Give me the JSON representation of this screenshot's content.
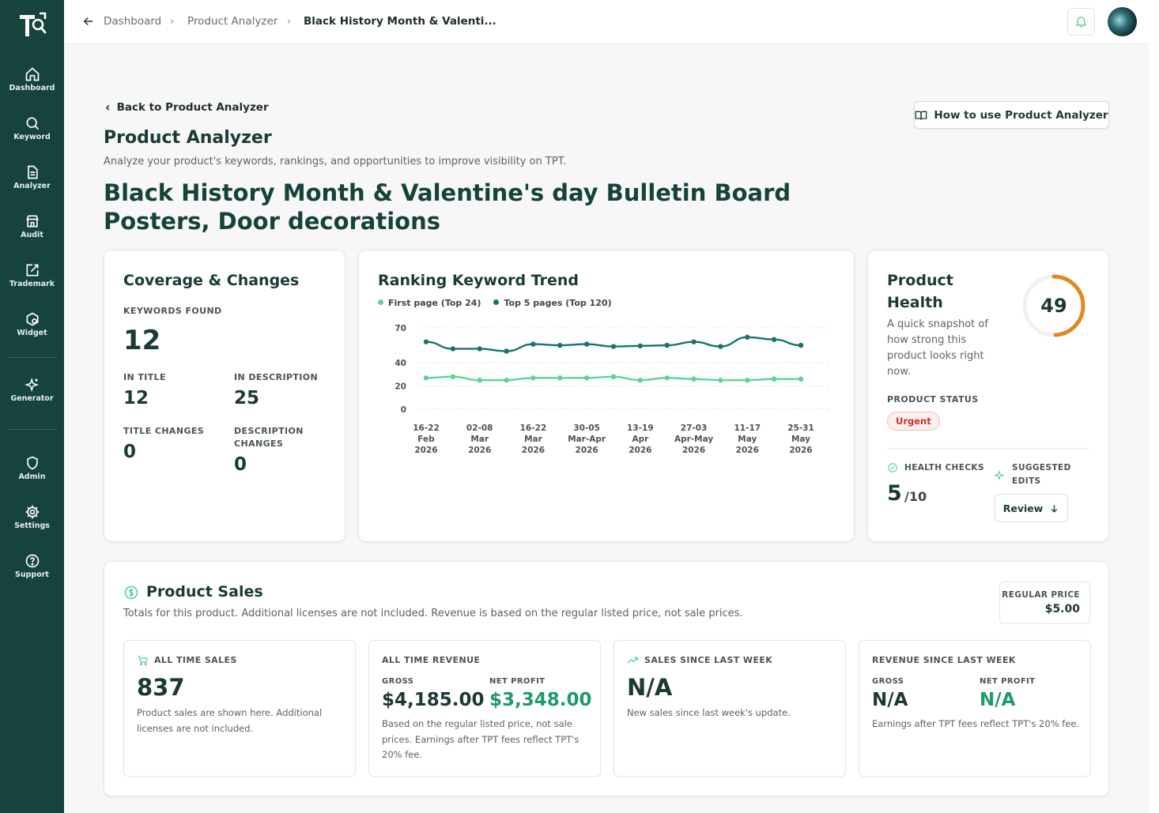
{
  "colors": {
    "sidebar": "#17433e",
    "first_page": "#5fd39a",
    "top5": "#17756a",
    "gauge": "#e08a1e",
    "net_profit": "#1f9a6a"
  },
  "sidebar": {
    "items": [
      {
        "label": "Dashboard",
        "icon": "home-icon"
      },
      {
        "label": "Keyword",
        "icon": "search-icon"
      },
      {
        "label": "Analyzer",
        "icon": "document-icon"
      },
      {
        "label": "Audit",
        "icon": "store-icon"
      },
      {
        "label": "Trademark",
        "icon": "edit-icon"
      },
      {
        "label": "Widget",
        "icon": "widget-icon"
      },
      {
        "label": "Generator",
        "icon": "sparkle-icon"
      },
      {
        "label": "Admin",
        "icon": "shield-icon"
      },
      {
        "label": "Settings",
        "icon": "gear-icon"
      },
      {
        "label": "Support",
        "icon": "help-icon"
      }
    ]
  },
  "breadcrumb": {
    "items": [
      "Dashboard",
      "Product Analyzer",
      "Black History Month & Valenti..."
    ]
  },
  "header": {
    "back_label": "Back to Product Analyzer",
    "title": "Product Analyzer",
    "subtitle": "Analyze your product's keywords, rankings, and opportunities to improve visibility on TPT.",
    "howto_label": "How to use Product Analyzer",
    "product_title": "Black History Month & Valentine's day Bulletin Board Posters, Door decorations"
  },
  "coverage": {
    "title": "Coverage & Changes",
    "keywords_found_label": "KEYWORDS FOUND",
    "keywords_found": "12",
    "in_title_label": "IN TITLE",
    "in_title": "12",
    "in_description_label": "IN DESCRIPTION",
    "in_description": "25",
    "title_changes_label": "TITLE CHANGES",
    "title_changes": "0",
    "description_changes_label_1": "DESCRIPTION",
    "description_changes_label_2": "CHANGES",
    "description_changes": "0"
  },
  "trend": {
    "title": "Ranking Keyword Trend",
    "legend_first": "First page (Top 24)",
    "legend_top5": "Top 5 pages (Top 120)"
  },
  "chart_data": {
    "type": "line",
    "title": "Ranking Keyword Trend",
    "y_ticks": [
      0,
      20,
      40,
      70
    ],
    "ylim": [
      0,
      70
    ],
    "x_tick_labels": [
      [
        "16-22",
        "Feb",
        "2026"
      ],
      [
        "02-08",
        "Mar",
        "2026"
      ],
      [
        "16-22",
        "Mar",
        "2026"
      ],
      [
        "30-05",
        "Mar-Apr",
        "2026"
      ],
      [
        "13-19",
        "Apr",
        "2026"
      ],
      [
        "27-03",
        "Apr-May",
        "2026"
      ],
      [
        "11-17",
        "May",
        "2026"
      ],
      [
        "25-31",
        "May",
        "2026"
      ]
    ],
    "grid": true,
    "legend_position": "top-left",
    "series": [
      {
        "name": "Top 5 pages (Top 120)",
        "values": [
          58,
          52,
          52,
          50,
          56,
          55,
          56,
          54,
          54.5,
          55,
          58,
          54,
          62,
          60,
          55
        ]
      },
      {
        "name": "First page (Top 24)",
        "values": [
          27,
          28,
          25,
          25,
          27,
          27,
          27,
          28,
          25,
          27,
          26,
          25,
          25,
          26,
          26
        ]
      }
    ]
  },
  "health": {
    "title_1": "Product",
    "title_2": "Health",
    "score": "49",
    "score_fraction": 0.49,
    "desc": [
      "A quick snapshot of",
      "how strong this",
      "product looks right",
      "now."
    ],
    "status_label": "PRODUCT STATUS",
    "status": "Urgent",
    "checks_label": "HEALTH CHECKS",
    "checks_value": "5",
    "checks_total": "/10",
    "edits_label_1": "SUGGESTED",
    "edits_label_2": "EDITS",
    "review_label": "Review"
  },
  "sales": {
    "title": "Product Sales",
    "subtitle": "Totals for this product. Additional licenses are not included. Revenue is based on the regular listed price, not sale prices.",
    "regular_price_label": "REGULAR PRICE",
    "regular_price": "$5.00",
    "all_time_sales_label": "ALL TIME SALES",
    "all_time_sales": "837",
    "all_time_sales_note": [
      "Product sales are shown here. Additional",
      "licenses are not included."
    ],
    "revenue_label": "ALL TIME REVENUE",
    "gross_label": "GROSS",
    "net_label": "NET PROFIT",
    "gross": "$4,185.00",
    "net": "$3,348.00",
    "revenue_note": [
      "Based on the regular listed price, not sale",
      "prices. Earnings after TPT fees reflect TPT's",
      "20% fee."
    ],
    "since_week_label": "SALES SINCE LAST WEEK",
    "since_week": "N/A",
    "since_week_note": "New sales since last week's update.",
    "rev_week_label": "REVENUE SINCE LAST WEEK",
    "rev_week_gross": "N/A",
    "rev_week_net": "N/A",
    "rev_week_note": "Earnings after TPT fees reflect TPT's 20% fee."
  }
}
